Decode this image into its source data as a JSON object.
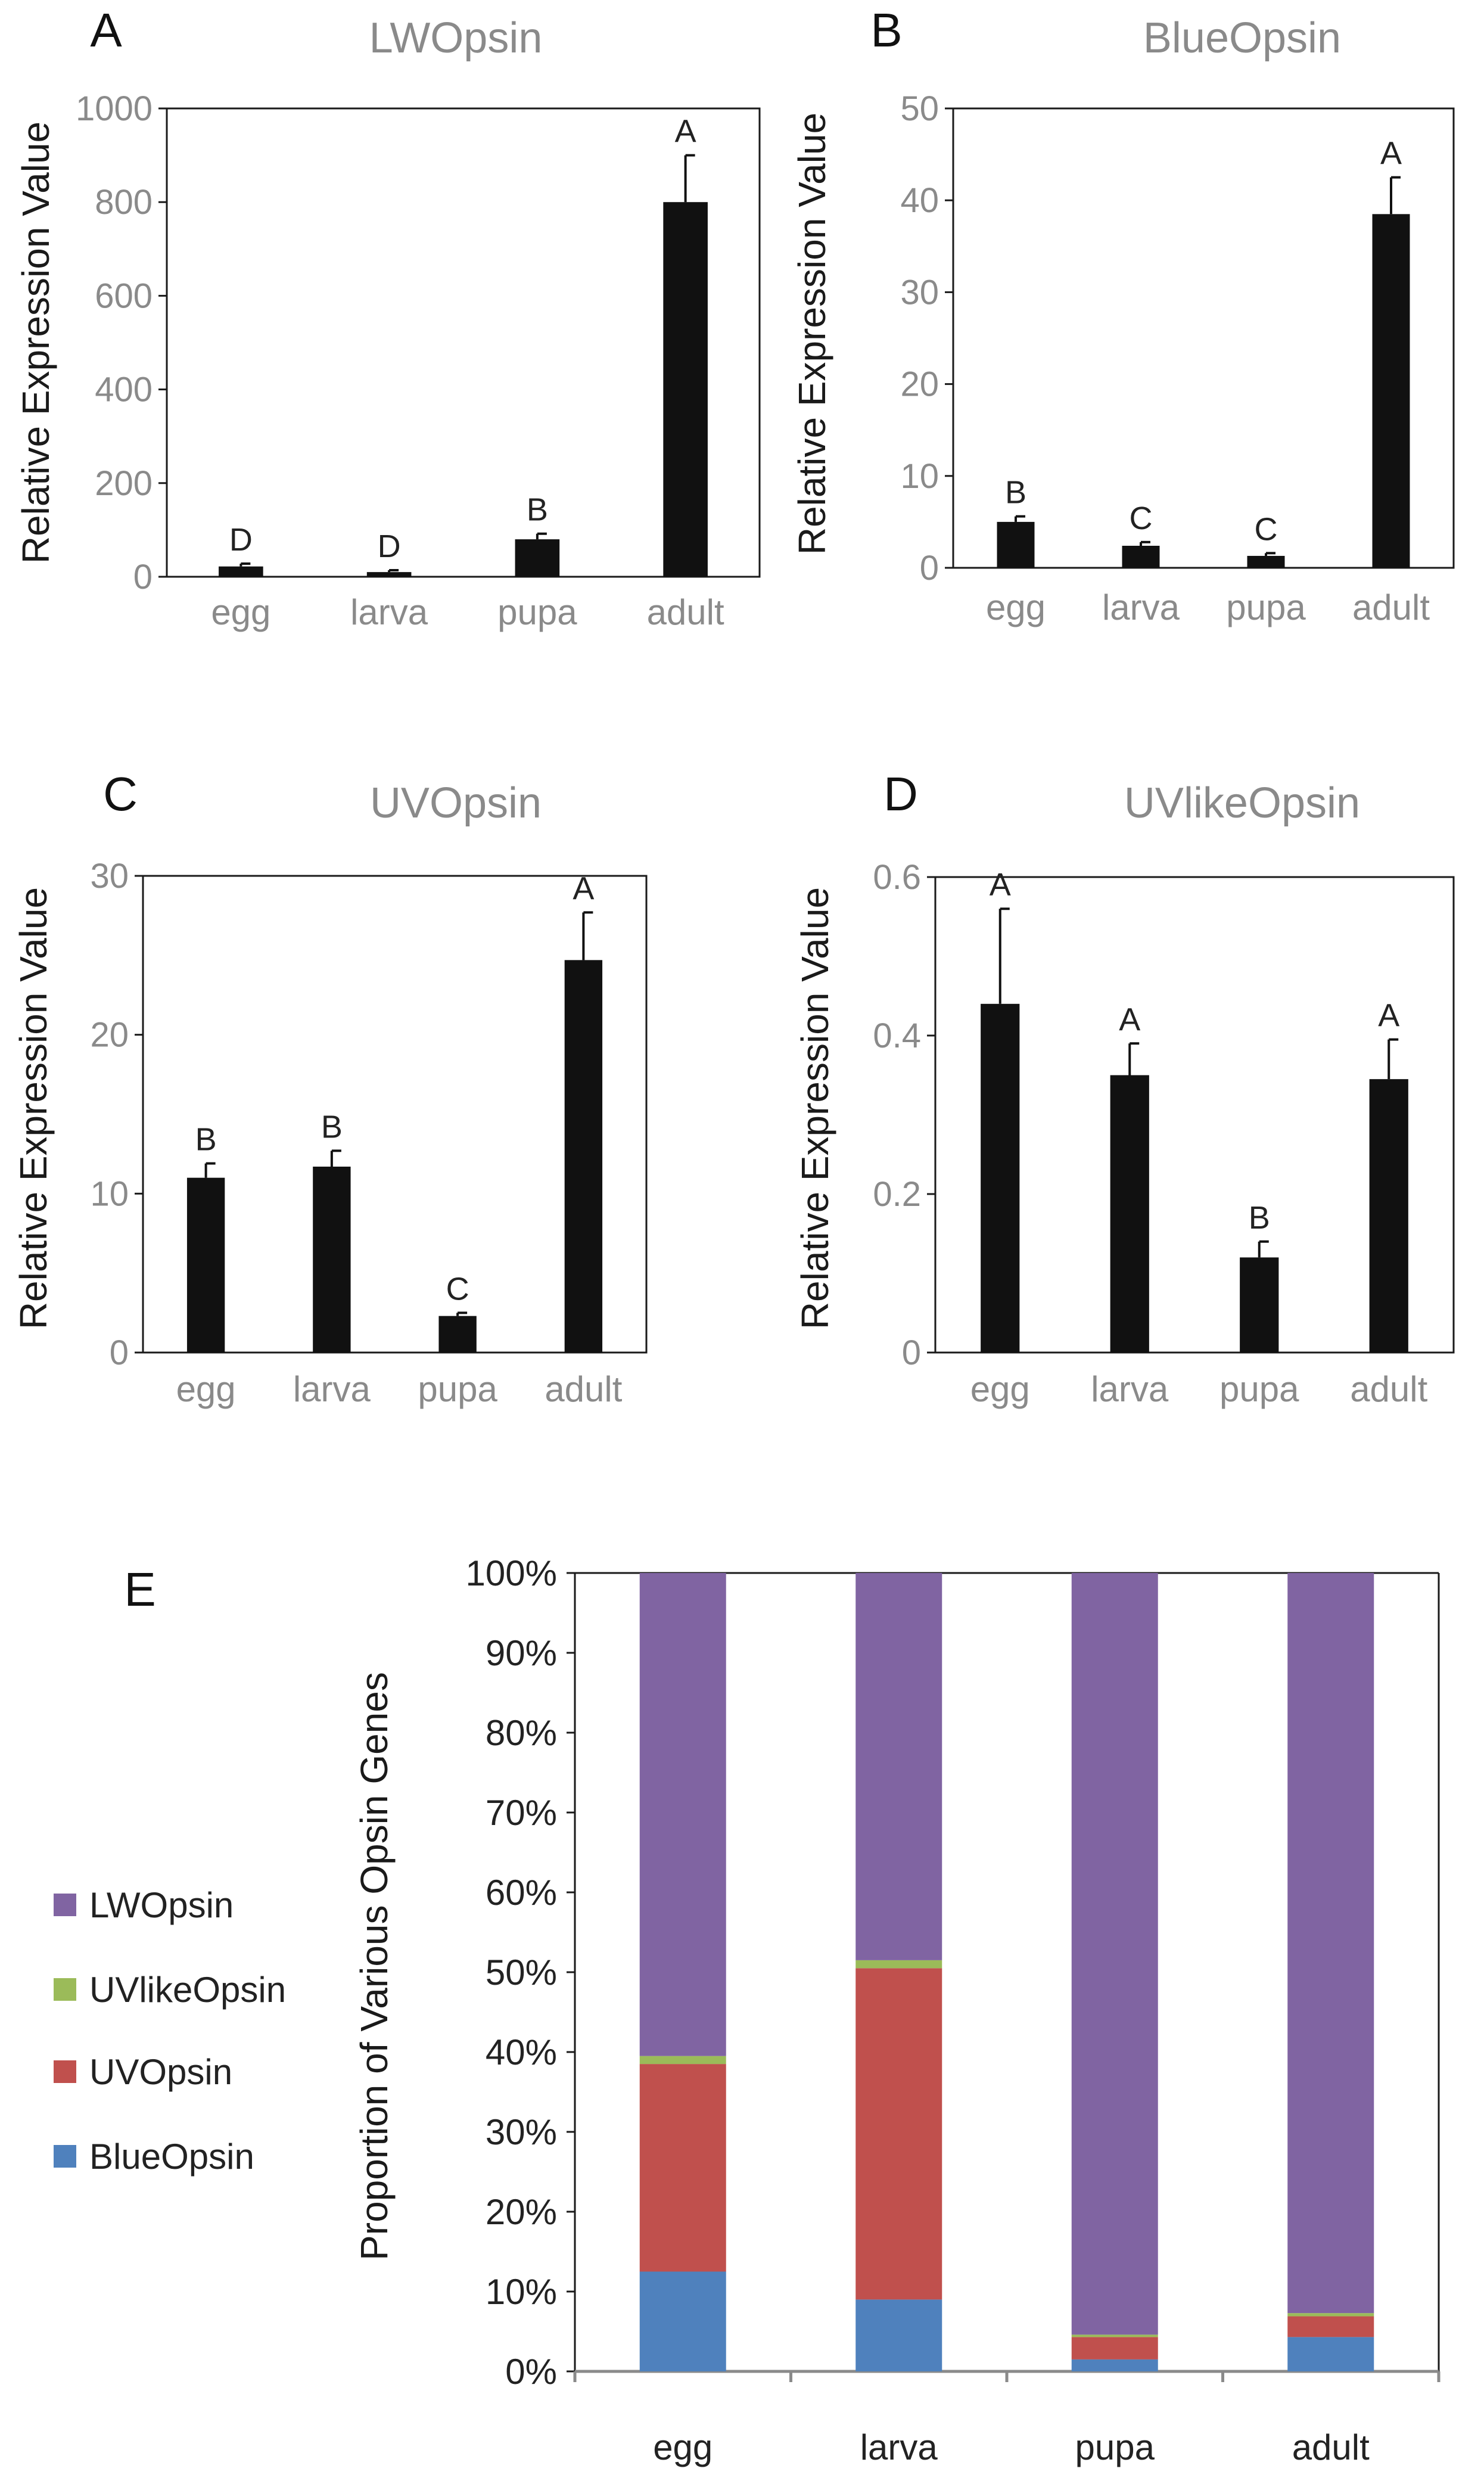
{
  "chart_data": [
    {
      "panel": "A",
      "type": "bar",
      "title": "LWOpsin",
      "ylabel": "Relative Expression Value",
      "xlabel": "",
      "categories": [
        "egg",
        "larva",
        "pupa",
        "adult"
      ],
      "values": [
        22,
        10,
        80,
        800
      ],
      "errors": [
        6,
        4,
        12,
        100
      ],
      "significance": [
        "D",
        "D",
        "B",
        "A"
      ],
      "ylim": [
        0,
        1000
      ],
      "yticks": [
        0,
        200,
        400,
        600,
        800,
        1000
      ],
      "ytick_labels": [
        "0",
        "200",
        "400",
        "600",
        "800",
        "1000"
      ]
    },
    {
      "panel": "B",
      "type": "bar",
      "title": "BlueOpsin",
      "ylabel": "Relative Expression Value",
      "xlabel": "",
      "categories": [
        "egg",
        "larva",
        "pupa",
        "adult"
      ],
      "values": [
        5,
        2.4,
        1.3,
        38.5
      ],
      "errors": [
        0.6,
        0.4,
        0.3,
        4
      ],
      "significance": [
        "B",
        "C",
        "C",
        "A"
      ],
      "ylim": [
        0,
        50
      ],
      "yticks": [
        0,
        10,
        20,
        30,
        40,
        50
      ],
      "ytick_labels": [
        "0",
        "10",
        "20",
        "30",
        "40",
        "50"
      ]
    },
    {
      "panel": "C",
      "type": "bar",
      "title": "UVOpsin",
      "ylabel": "Relative Expression Value",
      "xlabel": "",
      "categories": [
        "egg",
        "larva",
        "pupa",
        "adult"
      ],
      "values": [
        11,
        11.7,
        2.3,
        24.7
      ],
      "errors": [
        0.9,
        1,
        0.2,
        3
      ],
      "significance": [
        "B",
        "B",
        "C",
        "A"
      ],
      "ylim": [
        0,
        30
      ],
      "yticks": [
        0,
        10,
        20,
        30
      ],
      "ytick_labels": [
        "0",
        "10",
        "20",
        "30"
      ]
    },
    {
      "panel": "D",
      "type": "bar",
      "title": "UVlikeOpsin",
      "ylabel": "Relative Expression Value",
      "xlabel": "",
      "categories": [
        "egg",
        "larva",
        "pupa",
        "adult"
      ],
      "values": [
        0.44,
        0.35,
        0.12,
        0.345
      ],
      "errors": [
        0.12,
        0.04,
        0.02,
        0.05
      ],
      "significance": [
        "A",
        "A",
        "B",
        "A"
      ],
      "ylim": [
        0,
        0.6
      ],
      "yticks": [
        0,
        0.2,
        0.4,
        0.6
      ],
      "ytick_labels": [
        "0",
        "0.2",
        "0.4",
        "0.6"
      ]
    },
    {
      "panel": "E",
      "type": "stacked-bar",
      "title": "",
      "ylabel": "Proportion of Various Opsin Genes",
      "xlabel": "",
      "categories": [
        "egg",
        "larva",
        "pupa",
        "adult"
      ],
      "series": [
        {
          "name": "BlueOpsin",
          "color": "#4f81bd",
          "values": [
            12.5,
            9,
            1.5,
            4.3
          ]
        },
        {
          "name": "UVOpsin",
          "color": "#c0504d",
          "values": [
            26,
            41.5,
            2.8,
            2.6
          ]
        },
        {
          "name": "UVlikeOpsin",
          "color": "#9bbb59",
          "values": [
            1,
            1,
            0.3,
            0.4
          ]
        },
        {
          "name": "LWOpsin",
          "color": "#8064a2",
          "values": [
            60.5,
            48.5,
            95.4,
            92.7
          ]
        }
      ],
      "legend_order": [
        "LWOpsin",
        "UVlikeOpsin",
        "UVOpsin",
        "BlueOpsin"
      ],
      "legend_position": "left",
      "ylim": [
        0,
        100
      ],
      "yticks": [
        0,
        10,
        20,
        30,
        40,
        50,
        60,
        70,
        80,
        90,
        100
      ],
      "ytick_labels": [
        "0%",
        "10%",
        "20%",
        "30%",
        "40%",
        "50%",
        "60%",
        "70%",
        "80%",
        "90%",
        "100%"
      ]
    }
  ],
  "colors": {
    "bar": "#111111",
    "axis": "#1a1a1a",
    "tick_text": "#8a8a8a",
    "lw_color": "#8064a2",
    "uvlike_color": "#9bbb59",
    "uv_color": "#c0504d",
    "blue_color": "#4f81bd"
  }
}
